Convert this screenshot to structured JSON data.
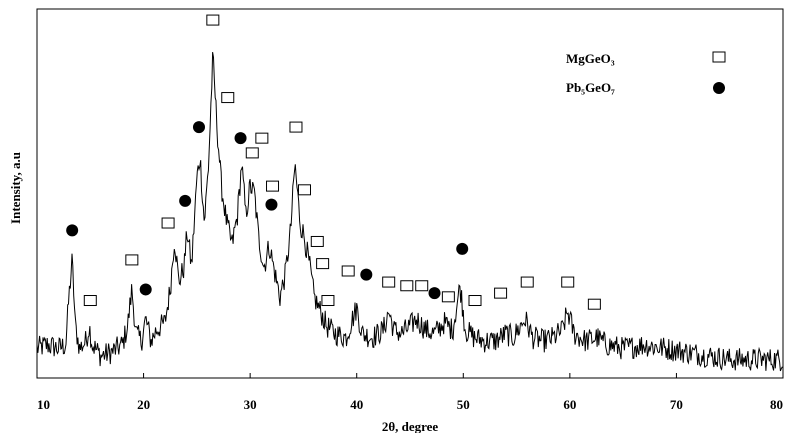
{
  "chart_data": {
    "type": "line",
    "title": "",
    "xlabel": "2θ, degree",
    "ylabel": "Intensity, a.u",
    "xlim": [
      10,
      80
    ],
    "ylim": [
      0,
      100
    ],
    "x_ticks": [
      10,
      20,
      30,
      40,
      50,
      60,
      70,
      80
    ],
    "x_tick_labels": [
      "10",
      "20",
      "30",
      "40",
      "50",
      "60",
      "70",
      "80"
    ],
    "grid": false,
    "legend_position": "top-right",
    "line_color": "#000000",
    "legend": [
      {
        "name": "MgGeO₃",
        "marker": "open-square"
      },
      {
        "name": "Pb₅GeO₇",
        "marker": "filled-circle"
      }
    ],
    "profile_points": [
      [
        10.0,
        8
      ],
      [
        11.0,
        9
      ],
      [
        12.0,
        8
      ],
      [
        12.7,
        9
      ],
      [
        13.0,
        22
      ],
      [
        13.3,
        32
      ],
      [
        13.6,
        14
      ],
      [
        14.0,
        8
      ],
      [
        14.6,
        10
      ],
      [
        14.9,
        14
      ],
      [
        15.2,
        9
      ],
      [
        16.0,
        6
      ],
      [
        17.0,
        7
      ],
      [
        18.0,
        9
      ],
      [
        18.5,
        14
      ],
      [
        18.9,
        24
      ],
      [
        19.3,
        12
      ],
      [
        19.8,
        10
      ],
      [
        20.2,
        16
      ],
      [
        20.7,
        10
      ],
      [
        21.2,
        13
      ],
      [
        22.0,
        15
      ],
      [
        22.5,
        24
      ],
      [
        22.9,
        38
      ],
      [
        23.3,
        26
      ],
      [
        23.8,
        30
      ],
      [
        24.1,
        40
      ],
      [
        24.5,
        30
      ],
      [
        25.0,
        54
      ],
      [
        25.3,
        60
      ],
      [
        25.7,
        42
      ],
      [
        26.1,
        58
      ],
      [
        26.5,
        87
      ],
      [
        26.9,
        68
      ],
      [
        27.3,
        52
      ],
      [
        27.8,
        42
      ],
      [
        28.3,
        36
      ],
      [
        28.8,
        44
      ],
      [
        29.2,
        58
      ],
      [
        29.6,
        44
      ],
      [
        30.0,
        52
      ],
      [
        30.4,
        50
      ],
      [
        30.8,
        38
      ],
      [
        31.3,
        30
      ],
      [
        31.8,
        36
      ],
      [
        32.2,
        30
      ],
      [
        32.8,
        22
      ],
      [
        33.3,
        28
      ],
      [
        33.8,
        40
      ],
      [
        34.2,
        58
      ],
      [
        34.7,
        42
      ],
      [
        35.1,
        38
      ],
      [
        35.6,
        30
      ],
      [
        36.0,
        22
      ],
      [
        36.6,
        18
      ],
      [
        37.2,
        14
      ],
      [
        38.0,
        12
      ],
      [
        39.0,
        11
      ],
      [
        39.6,
        16
      ],
      [
        40.0,
        19
      ],
      [
        40.5,
        12
      ],
      [
        41.5,
        11
      ],
      [
        42.5,
        13
      ],
      [
        43.0,
        18
      ],
      [
        43.5,
        13
      ],
      [
        44.2,
        12
      ],
      [
        45.0,
        14
      ],
      [
        45.6,
        16
      ],
      [
        46.5,
        13
      ],
      [
        47.3,
        12
      ],
      [
        48.2,
        15
      ],
      [
        49.0,
        13
      ],
      [
        49.7,
        25
      ],
      [
        50.2,
        13
      ],
      [
        51.0,
        11
      ],
      [
        52.0,
        10
      ],
      [
        53.0,
        10
      ],
      [
        54.0,
        12
      ],
      [
        54.7,
        11
      ],
      [
        55.8,
        16
      ],
      [
        56.5,
        11
      ],
      [
        57.5,
        10
      ],
      [
        58.5,
        11
      ],
      [
        59.3,
        13
      ],
      [
        59.8,
        18
      ],
      [
        60.4,
        12
      ],
      [
        61.5,
        10
      ],
      [
        62.5,
        11
      ],
      [
        63.5,
        9
      ],
      [
        65.0,
        8
      ],
      [
        67.0,
        9
      ],
      [
        69.0,
        8
      ],
      [
        71.0,
        7
      ],
      [
        73.0,
        6
      ],
      [
        75.0,
        5
      ],
      [
        77.0,
        5
      ],
      [
        80.0,
        5
      ]
    ],
    "noise_amplitude": 3.2,
    "markers": [
      {
        "phase": "Pb₅GeO₇",
        "x": 13.3,
        "y": 40
      },
      {
        "phase": "MgGeO₃",
        "x": 15.0,
        "y": 21
      },
      {
        "phase": "MgGeO₃",
        "x": 18.9,
        "y": 32
      },
      {
        "phase": "Pb₅GeO₇",
        "x": 20.2,
        "y": 24
      },
      {
        "phase": "MgGeO₃",
        "x": 22.3,
        "y": 42
      },
      {
        "phase": "Pb₅GeO₇",
        "x": 23.9,
        "y": 48
      },
      {
        "phase": "Pb₅GeO₇",
        "x": 25.2,
        "y": 68
      },
      {
        "phase": "MgGeO₃",
        "x": 26.5,
        "y": 97
      },
      {
        "phase": "MgGeO₃",
        "x": 27.9,
        "y": 76
      },
      {
        "phase": "Pb₅GeO₇",
        "x": 29.1,
        "y": 65
      },
      {
        "phase": "MgGeO₃",
        "x": 30.2,
        "y": 61
      },
      {
        "phase": "MgGeO₃",
        "x": 31.1,
        "y": 65
      },
      {
        "phase": "Pb₅GeO₇",
        "x": 32.0,
        "y": 47
      },
      {
        "phase": "MgGeO₃",
        "x": 32.1,
        "y": 52
      },
      {
        "phase": "MgGeO₃",
        "x": 34.3,
        "y": 68
      },
      {
        "phase": "MgGeO₃",
        "x": 35.1,
        "y": 51
      },
      {
        "phase": "MgGeO₃",
        "x": 36.3,
        "y": 37
      },
      {
        "phase": "MgGeO₃",
        "x": 36.8,
        "y": 31
      },
      {
        "phase": "MgGeO₃",
        "x": 37.3,
        "y": 21
      },
      {
        "phase": "MgGeO₃",
        "x": 39.2,
        "y": 29
      },
      {
        "phase": "Pb₅GeO₇",
        "x": 40.9,
        "y": 28
      },
      {
        "phase": "MgGeO₃",
        "x": 43.0,
        "y": 26
      },
      {
        "phase": "MgGeO₃",
        "x": 44.7,
        "y": 25
      },
      {
        "phase": "MgGeO₃",
        "x": 46.1,
        "y": 25
      },
      {
        "phase": "Pb₅GeO₇",
        "x": 47.3,
        "y": 23
      },
      {
        "phase": "MgGeO₃",
        "x": 48.6,
        "y": 22
      },
      {
        "phase": "Pb₅GeO₇",
        "x": 49.9,
        "y": 35
      },
      {
        "phase": "MgGeO₃",
        "x": 51.1,
        "y": 21
      },
      {
        "phase": "MgGeO₃",
        "x": 53.5,
        "y": 23
      },
      {
        "phase": "MgGeO₃",
        "x": 56.0,
        "y": 26
      },
      {
        "phase": "MgGeO₃",
        "x": 59.8,
        "y": 26
      },
      {
        "phase": "MgGeO₃",
        "x": 62.3,
        "y": 20
      }
    ]
  }
}
